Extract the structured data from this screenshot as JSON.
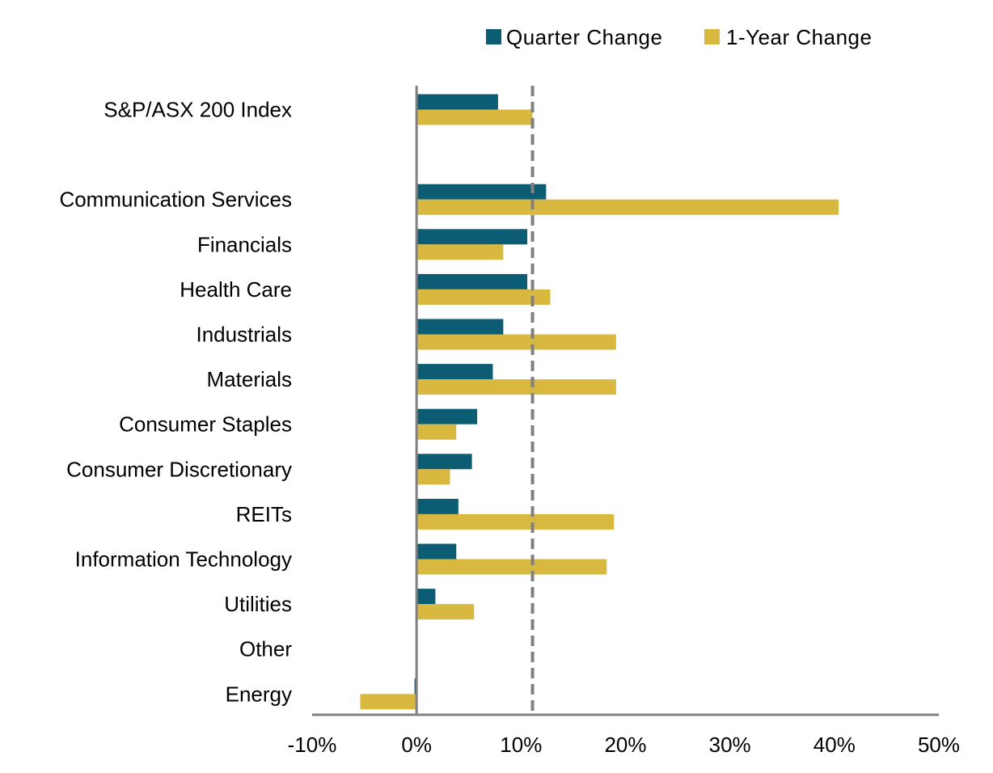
{
  "colors": {
    "quarter": "#0C5C73",
    "year": "#D9B840",
    "axis": "#808080",
    "reference_line": "#808080"
  },
  "chart_data": {
    "type": "bar",
    "orientation": "horizontal",
    "title": "",
    "xlabel": "",
    "ylabel": "",
    "categories": [
      "S&P/ASX 200 Index",
      "",
      "Communication Services",
      "Financials",
      "Health Care",
      "Industrials",
      "Materials",
      "Consumer Staples",
      "Consumer Discretionary",
      "REITs",
      "Information Technology",
      "Utilities",
      "Other",
      "Energy"
    ],
    "series": [
      {
        "name": "Quarter Change",
        "color_key": "quarter",
        "values": [
          7.8,
          null,
          12.4,
          10.6,
          10.6,
          8.3,
          7.3,
          5.8,
          5.3,
          4.0,
          3.8,
          1.8,
          0,
          -0.2
        ]
      },
      {
        "name": "1-Year Change",
        "color_key": "year",
        "values": [
          11.1,
          null,
          40.4,
          8.3,
          12.8,
          19.1,
          19.1,
          3.8,
          3.2,
          18.9,
          18.2,
          5.5,
          0,
          -5.4
        ]
      }
    ],
    "xlim": [
      -10,
      50
    ],
    "x_ticks": [
      -10,
      0,
      10,
      20,
      30,
      40,
      50
    ],
    "x_tick_labels": [
      "-10%",
      "0%",
      "10%",
      "20%",
      "30%",
      "40%",
      "50%"
    ],
    "reference_line": {
      "value": 11.1,
      "style": "dashed"
    },
    "legend": {
      "position": "top-right"
    }
  }
}
